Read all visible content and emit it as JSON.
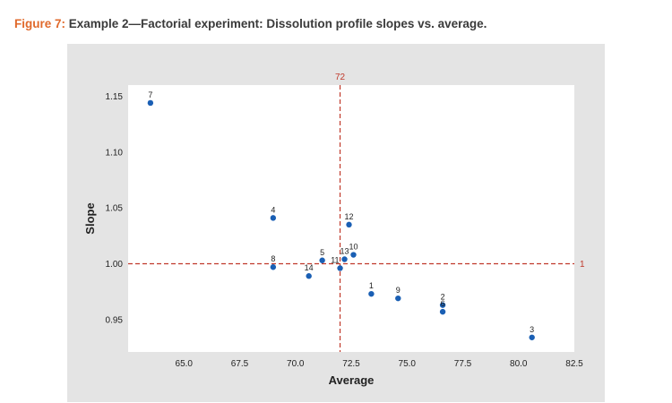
{
  "caption": {
    "label": "Figure 7:",
    "text": " Example 2—Factorial experiment: Dissolution profile slopes vs. average."
  },
  "chart_data": {
    "type": "scatter",
    "xlabel": "Average",
    "ylabel": "Slope",
    "xlim": [
      62.5,
      82.5
    ],
    "ylim": [
      0.921,
      1.16
    ],
    "x_ticks": [
      65.0,
      67.5,
      70.0,
      72.5,
      75.0,
      77.5,
      80.0,
      82.5
    ],
    "x_tick_labels": [
      "65.0",
      "67.5",
      "70.0",
      "72.5",
      "75.0",
      "77.5",
      "80.0",
      "82.5"
    ],
    "y_ticks": [
      0.95,
      1.0,
      1.05,
      1.1,
      1.15
    ],
    "y_tick_labels": [
      "0.95",
      "1.00",
      "1.05",
      "1.10",
      "1.15"
    ],
    "grid": false,
    "reference_lines": [
      {
        "axis": "x",
        "value": 72,
        "label": "72"
      },
      {
        "axis": "y",
        "value": 1,
        "label": "1"
      }
    ],
    "marker_color": "#1a5fb4",
    "reference_color": "#c0392b",
    "points": [
      {
        "label": "1",
        "x": 73.4,
        "y": 0.973
      },
      {
        "label": "2",
        "x": 76.6,
        "y": 0.963
      },
      {
        "label": "3",
        "x": 80.6,
        "y": 0.934
      },
      {
        "label": "4",
        "x": 69.0,
        "y": 1.041
      },
      {
        "label": "5",
        "x": 71.2,
        "y": 1.003
      },
      {
        "label": "6",
        "x": 76.6,
        "y": 0.957
      },
      {
        "label": "7",
        "x": 63.5,
        "y": 1.144
      },
      {
        "label": "8",
        "x": 69.0,
        "y": 0.997
      },
      {
        "label": "9",
        "x": 74.6,
        "y": 0.969
      },
      {
        "label": "10",
        "x": 72.6,
        "y": 1.008
      },
      {
        "label": "11",
        "x": 72.0,
        "y": 0.996
      },
      {
        "label": "12",
        "x": 72.4,
        "y": 1.035
      },
      {
        "label": "13",
        "x": 72.2,
        "y": 1.004
      },
      {
        "label": "14",
        "x": 70.6,
        "y": 0.989
      }
    ]
  }
}
